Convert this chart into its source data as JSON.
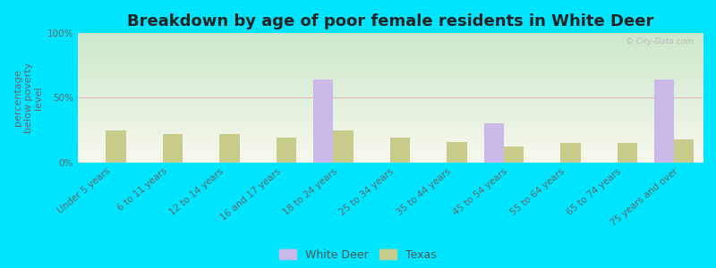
{
  "title": "Breakdown by age of poor female residents in White Deer",
  "ylabel": "percentage\nbelow poverty\nlevel",
  "categories": [
    "Under 5 years",
    "6 to 11 years",
    "12 to 14 years",
    "16 and 17 years",
    "18 to 24 years",
    "25 to 34 years",
    "35 to 44 years",
    "45 to 54 years",
    "55 to 64 years",
    "65 to 74 years",
    "75 years and over"
  ],
  "white_deer": [
    0,
    0,
    0,
    0,
    64,
    0,
    0,
    30,
    0,
    0,
    64
  ],
  "texas": [
    25,
    22,
    22,
    19,
    25,
    19,
    16,
    12,
    15,
    15,
    18
  ],
  "white_deer_color": "#c9b8e8",
  "texas_color": "#c8cc8a",
  "background_color": "#00e5ff",
  "plot_bg_top_left": "#c8e8cc",
  "plot_bg_top_right": "#e8f0d8",
  "plot_bg_bottom": "#f8f8ee",
  "ylim": [
    0,
    100
  ],
  "yticks": [
    0,
    50,
    100
  ],
  "ytick_labels": [
    "0%",
    "50%",
    "100%"
  ],
  "bar_width": 0.35,
  "title_fontsize": 13,
  "axis_label_fontsize": 8,
  "tick_fontsize": 7.5,
  "legend_labels": [
    "White Deer",
    "Texas"
  ],
  "watermark": "© City-Data.com"
}
